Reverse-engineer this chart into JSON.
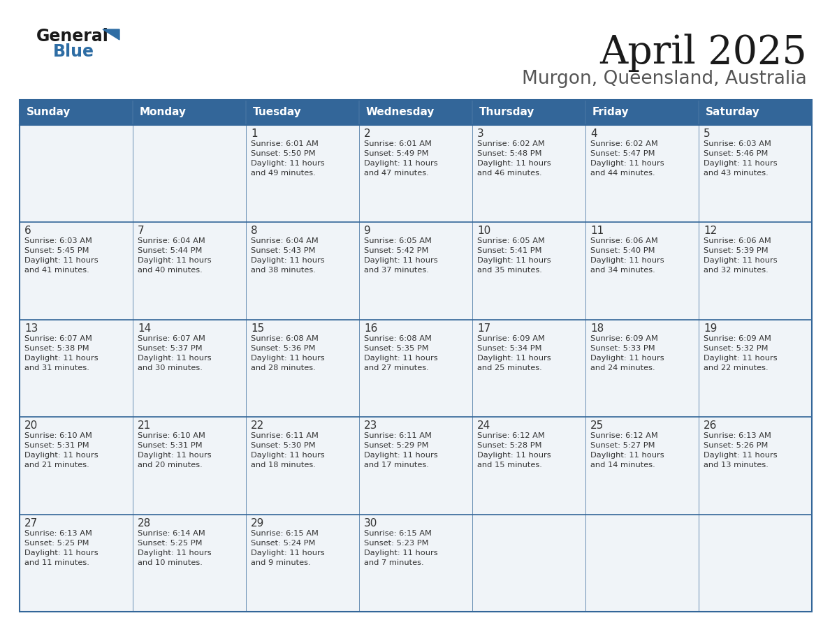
{
  "title": "April 2025",
  "subtitle": "Murgon, Queensland, Australia",
  "header_bg": "#336699",
  "header_text_color": "#FFFFFF",
  "cell_bg_light": "#F0F4F8",
  "cell_bg_white": "#FFFFFF",
  "border_color": "#336699",
  "row_divider_color": "#336699",
  "text_color": "#333333",
  "days_of_week": [
    "Sunday",
    "Monday",
    "Tuesday",
    "Wednesday",
    "Thursday",
    "Friday",
    "Saturday"
  ],
  "calendar_data": [
    [
      {
        "day": "",
        "sunrise": "",
        "sunset": "",
        "daylight": ""
      },
      {
        "day": "",
        "sunrise": "",
        "sunset": "",
        "daylight": ""
      },
      {
        "day": "1",
        "sunrise": "Sunrise: 6:01 AM",
        "sunset": "Sunset: 5:50 PM",
        "daylight": "Daylight: 11 hours\nand 49 minutes."
      },
      {
        "day": "2",
        "sunrise": "Sunrise: 6:01 AM",
        "sunset": "Sunset: 5:49 PM",
        "daylight": "Daylight: 11 hours\nand 47 minutes."
      },
      {
        "day": "3",
        "sunrise": "Sunrise: 6:02 AM",
        "sunset": "Sunset: 5:48 PM",
        "daylight": "Daylight: 11 hours\nand 46 minutes."
      },
      {
        "day": "4",
        "sunrise": "Sunrise: 6:02 AM",
        "sunset": "Sunset: 5:47 PM",
        "daylight": "Daylight: 11 hours\nand 44 minutes."
      },
      {
        "day": "5",
        "sunrise": "Sunrise: 6:03 AM",
        "sunset": "Sunset: 5:46 PM",
        "daylight": "Daylight: 11 hours\nand 43 minutes."
      }
    ],
    [
      {
        "day": "6",
        "sunrise": "Sunrise: 6:03 AM",
        "sunset": "Sunset: 5:45 PM",
        "daylight": "Daylight: 11 hours\nand 41 minutes."
      },
      {
        "day": "7",
        "sunrise": "Sunrise: 6:04 AM",
        "sunset": "Sunset: 5:44 PM",
        "daylight": "Daylight: 11 hours\nand 40 minutes."
      },
      {
        "day": "8",
        "sunrise": "Sunrise: 6:04 AM",
        "sunset": "Sunset: 5:43 PM",
        "daylight": "Daylight: 11 hours\nand 38 minutes."
      },
      {
        "day": "9",
        "sunrise": "Sunrise: 6:05 AM",
        "sunset": "Sunset: 5:42 PM",
        "daylight": "Daylight: 11 hours\nand 37 minutes."
      },
      {
        "day": "10",
        "sunrise": "Sunrise: 6:05 AM",
        "sunset": "Sunset: 5:41 PM",
        "daylight": "Daylight: 11 hours\nand 35 minutes."
      },
      {
        "day": "11",
        "sunrise": "Sunrise: 6:06 AM",
        "sunset": "Sunset: 5:40 PM",
        "daylight": "Daylight: 11 hours\nand 34 minutes."
      },
      {
        "day": "12",
        "sunrise": "Sunrise: 6:06 AM",
        "sunset": "Sunset: 5:39 PM",
        "daylight": "Daylight: 11 hours\nand 32 minutes."
      }
    ],
    [
      {
        "day": "13",
        "sunrise": "Sunrise: 6:07 AM",
        "sunset": "Sunset: 5:38 PM",
        "daylight": "Daylight: 11 hours\nand 31 minutes."
      },
      {
        "day": "14",
        "sunrise": "Sunrise: 6:07 AM",
        "sunset": "Sunset: 5:37 PM",
        "daylight": "Daylight: 11 hours\nand 30 minutes."
      },
      {
        "day": "15",
        "sunrise": "Sunrise: 6:08 AM",
        "sunset": "Sunset: 5:36 PM",
        "daylight": "Daylight: 11 hours\nand 28 minutes."
      },
      {
        "day": "16",
        "sunrise": "Sunrise: 6:08 AM",
        "sunset": "Sunset: 5:35 PM",
        "daylight": "Daylight: 11 hours\nand 27 minutes."
      },
      {
        "day": "17",
        "sunrise": "Sunrise: 6:09 AM",
        "sunset": "Sunset: 5:34 PM",
        "daylight": "Daylight: 11 hours\nand 25 minutes."
      },
      {
        "day": "18",
        "sunrise": "Sunrise: 6:09 AM",
        "sunset": "Sunset: 5:33 PM",
        "daylight": "Daylight: 11 hours\nand 24 minutes."
      },
      {
        "day": "19",
        "sunrise": "Sunrise: 6:09 AM",
        "sunset": "Sunset: 5:32 PM",
        "daylight": "Daylight: 11 hours\nand 22 minutes."
      }
    ],
    [
      {
        "day": "20",
        "sunrise": "Sunrise: 6:10 AM",
        "sunset": "Sunset: 5:31 PM",
        "daylight": "Daylight: 11 hours\nand 21 minutes."
      },
      {
        "day": "21",
        "sunrise": "Sunrise: 6:10 AM",
        "sunset": "Sunset: 5:31 PM",
        "daylight": "Daylight: 11 hours\nand 20 minutes."
      },
      {
        "day": "22",
        "sunrise": "Sunrise: 6:11 AM",
        "sunset": "Sunset: 5:30 PM",
        "daylight": "Daylight: 11 hours\nand 18 minutes."
      },
      {
        "day": "23",
        "sunrise": "Sunrise: 6:11 AM",
        "sunset": "Sunset: 5:29 PM",
        "daylight": "Daylight: 11 hours\nand 17 minutes."
      },
      {
        "day": "24",
        "sunrise": "Sunrise: 6:12 AM",
        "sunset": "Sunset: 5:28 PM",
        "daylight": "Daylight: 11 hours\nand 15 minutes."
      },
      {
        "day": "25",
        "sunrise": "Sunrise: 6:12 AM",
        "sunset": "Sunset: 5:27 PM",
        "daylight": "Daylight: 11 hours\nand 14 minutes."
      },
      {
        "day": "26",
        "sunrise": "Sunrise: 6:13 AM",
        "sunset": "Sunset: 5:26 PM",
        "daylight": "Daylight: 11 hours\nand 13 minutes."
      }
    ],
    [
      {
        "day": "27",
        "sunrise": "Sunrise: 6:13 AM",
        "sunset": "Sunset: 5:25 PM",
        "daylight": "Daylight: 11 hours\nand 11 minutes."
      },
      {
        "day": "28",
        "sunrise": "Sunrise: 6:14 AM",
        "sunset": "Sunset: 5:25 PM",
        "daylight": "Daylight: 11 hours\nand 10 minutes."
      },
      {
        "day": "29",
        "sunrise": "Sunrise: 6:15 AM",
        "sunset": "Sunset: 5:24 PM",
        "daylight": "Daylight: 11 hours\nand 9 minutes."
      },
      {
        "day": "30",
        "sunrise": "Sunrise: 6:15 AM",
        "sunset": "Sunset: 5:23 PM",
        "daylight": "Daylight: 11 hours\nand 7 minutes."
      },
      {
        "day": "",
        "sunrise": "",
        "sunset": "",
        "daylight": ""
      },
      {
        "day": "",
        "sunrise": "",
        "sunset": "",
        "daylight": ""
      },
      {
        "day": "",
        "sunrise": "",
        "sunset": "",
        "daylight": ""
      }
    ]
  ]
}
